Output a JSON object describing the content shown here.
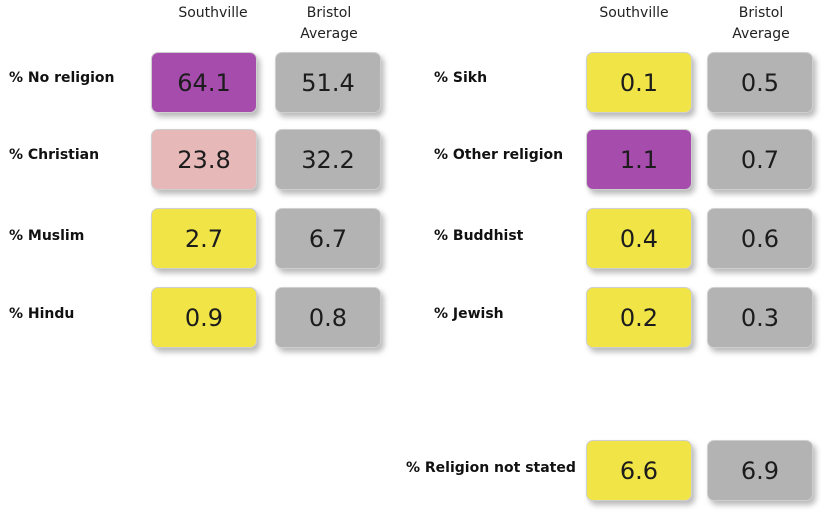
{
  "columns": {
    "area": "Southville",
    "average_line1": "Bristol",
    "average_line2": "Average"
  },
  "left_rows": [
    {
      "label": "% No religion",
      "southville": "64.1",
      "bristol": "51.4",
      "southville_color": "purple"
    },
    {
      "label": "% Christian",
      "southville": "23.8",
      "bristol": "32.2",
      "southville_color": "pink"
    },
    {
      "label": "% Muslim",
      "southville": "2.7",
      "bristol": "6.7",
      "southville_color": "yellow"
    },
    {
      "label": "% Hindu",
      "southville": "0.9",
      "bristol": "0.8",
      "southville_color": "yellow"
    }
  ],
  "right_rows": [
    {
      "label": "% Sikh",
      "southville": "0.1",
      "bristol": "0.5",
      "southville_color": "yellow"
    },
    {
      "label": "% Other religion",
      "southville": "1.1",
      "bristol": "0.7",
      "southville_color": "purple"
    },
    {
      "label": "% Buddhist",
      "southville": "0.4",
      "bristol": "0.6",
      "southville_color": "yellow"
    },
    {
      "label": "% Jewish",
      "southville": "0.2",
      "bristol": "0.3",
      "southville_color": "yellow"
    }
  ],
  "not_stated": {
    "label": "% Religion not stated",
    "southville": "6.6",
    "bristol": "6.9",
    "southville_color": "yellow"
  },
  "colors": {
    "purple": "#a54cad",
    "pink": "#e6b8b8",
    "yellow": "#f1e446",
    "grey": "#b3b3b3"
  }
}
